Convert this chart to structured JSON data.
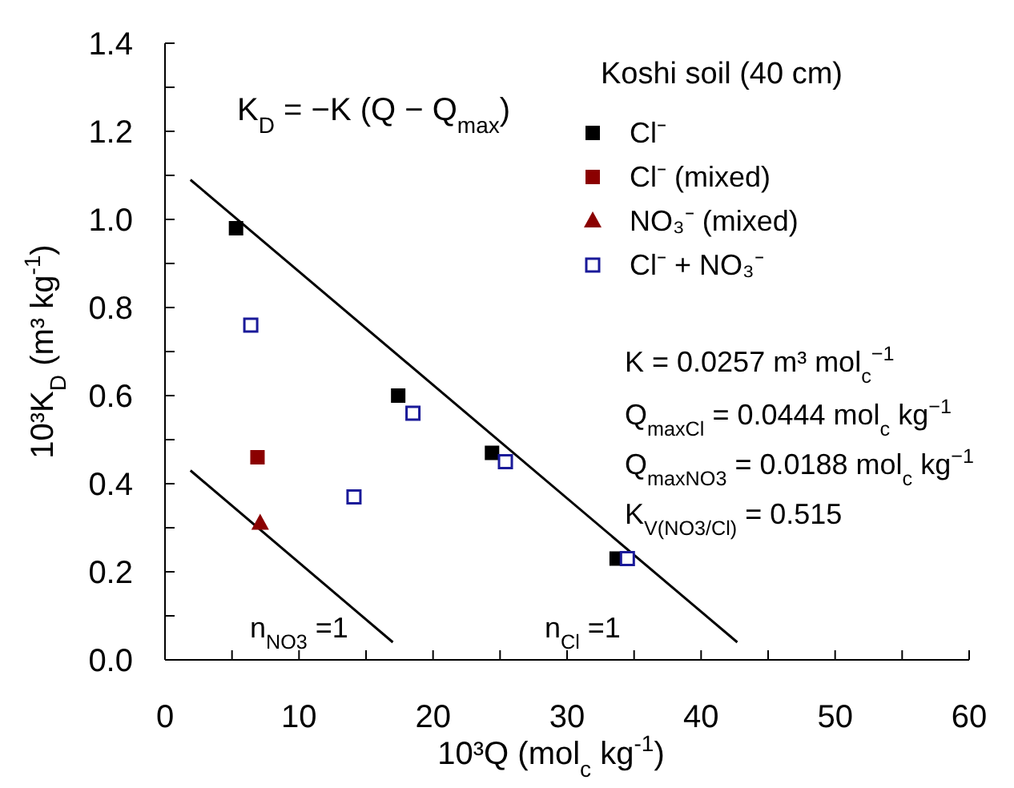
{
  "chart_data": {
    "type": "scatter",
    "xlabel": "10³Q  (mol$_{c}$ kg$^{-1}$)",
    "ylabel": "10³K$_{D}$ (m³ kg$^{-1}$)",
    "legend_title": "Koshi soil (40 cm)",
    "legend": "top right",
    "grid": false,
    "xlim": [
      0,
      60
    ],
    "ylim": [
      0,
      1.4
    ],
    "xticks": [
      0,
      {
        "value": 5,
        "label": null
      },
      10,
      {
        "value": 15,
        "label": null
      },
      20,
      {
        "value": 25,
        "label": null
      },
      30,
      {
        "value": 35,
        "label": null
      },
      40,
      {
        "value": 45,
        "label": null
      },
      50,
      {
        "value": 55,
        "label": null
      },
      60
    ],
    "yticks": [
      "0.0",
      {
        "value": 0.1,
        "label": null
      },
      {
        "value": 0.2,
        "label": "0.2"
      },
      {
        "value": 0.3,
        "label": null
      },
      {
        "value": 0.4,
        "label": "0.4"
      },
      {
        "value": 0.5,
        "label": null
      },
      {
        "value": 0.6,
        "label": "0.6"
      },
      {
        "value": 0.7,
        "label": null
      },
      {
        "value": 0.8,
        "label": "0.8"
      },
      {
        "value": 0.9,
        "label": null
      },
      {
        "value": 1.0,
        "label": "1.0"
      },
      {
        "value": 1.1,
        "label": null
      },
      {
        "value": 1.2,
        "label": "1.2"
      },
      {
        "value": 1.3,
        "label": null
      },
      {
        "value": 1.4,
        "label": "1.4"
      }
    ],
    "series": [
      {
        "name": "Cl⁻",
        "color": "#000000",
        "marker": "square",
        "x": [
          5.3,
          17.4,
          24.4,
          33.7
        ],
        "values": [
          0.98,
          0.6,
          0.47,
          0.23
        ]
      },
      {
        "name": "Cl⁻ (mixed)",
        "color": "#8b0000",
        "marker": "square",
        "x": [
          6.9
        ],
        "values": [
          0.46
        ]
      },
      {
        "name": "NO₃⁻ (mixed)",
        "color": "#8b0000",
        "marker": "triangle",
        "x": [
          7.1
        ],
        "values": [
          0.31
        ]
      },
      {
        "name": "Cl⁻ + NO₃⁻",
        "color": "#1a1a99",
        "marker": "square-open",
        "x": [
          6.4,
          14.1,
          18.5,
          25.4,
          34.5
        ],
        "values": [
          0.76,
          0.37,
          0.56,
          0.45,
          0.23
        ]
      },
      {
        "type": "line",
        "color": "#000000",
        "marker": "none",
        "x": [
          1.9,
          42.7
        ],
        "values": [
          1.09,
          0.04
        ]
      },
      {
        "type": "line",
        "color": "#000000",
        "marker": "none",
        "x": [
          1.9,
          17.0
        ],
        "values": [
          0.43,
          0.04
        ]
      }
    ],
    "annotations": [
      "K$_{D}$ = −K (Q − Q$_{max}$)",
      "K = 0.0257 m³ mol$_{c}$$^{−1}$",
      "Q$_{maxCl}$ = 0.0444 mol$_{c}$ kg$^{−1}$",
      "Q$_{maxNO3}$ = 0.0188 mol$_{c}$ kg$^{−1}$",
      "K$_{V(NO3/Cl)}$ = 0.515",
      "n$_{NO3}$ =1",
      "n$_{Cl}$ =1"
    ]
  }
}
